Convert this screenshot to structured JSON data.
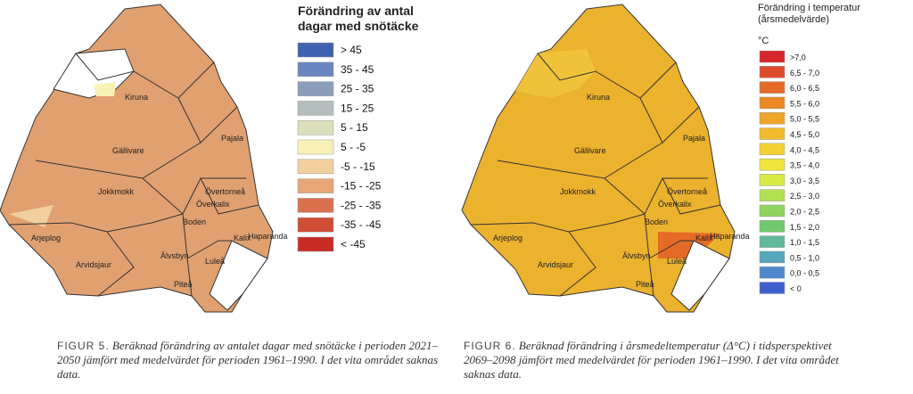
{
  "figures": [
    {
      "legend": {
        "title": "Förändring av antal dagar med snötäcke",
        "items": [
          {
            "label": "> 45",
            "color": "#3f63b0"
          },
          {
            "label": "35 - 45",
            "color": "#6a86c0"
          },
          {
            "label": "25 - 35",
            "color": "#8c9dbb"
          },
          {
            "label": "15 - 25",
            "color": "#b4bdbd"
          },
          {
            "label": "5 - 15",
            "color": "#dcdfbb"
          },
          {
            "label": "5 - -5",
            "color": "#f8f2b6"
          },
          {
            "label": "-5 - -15",
            "color": "#f2d09e"
          },
          {
            "label": "-15 - -25",
            "color": "#e6a677"
          },
          {
            "label": "-25 - -35",
            "color": "#d9714f"
          },
          {
            "label": "-35 - -45",
            "color": "#cf4c35"
          },
          {
            "label": "< -45",
            "color": "#c62b25"
          }
        ]
      },
      "places": [
        "Kiruna",
        "Pajala",
        "Gällivare",
        "Jokkmokk",
        "Övertorneå",
        "Överkalix",
        "Arjeplog",
        "Boden",
        "Kalix",
        "Haparanda",
        "Älvsbyn",
        "Luleå",
        "Arvidsjaur",
        "Piteå"
      ],
      "caption": {
        "label": "FIGUR 5.",
        "text": "Beräknad förändring av antalet dagar med snötäcke i perioden 2021–2050 jämfört med medelvärdet för perioden 1961–1990. I det vita området saknas data."
      }
    },
    {
      "legend": {
        "title": "Förändring i temperatur (årsmedelvärde)",
        "unit": "°C",
        "items": [
          {
            "label": ">7,0",
            "color": "#d7262b"
          },
          {
            "label": "6,5 - 7,0",
            "color": "#de4a2a"
          },
          {
            "label": "6,0 - 6,5",
            "color": "#e56a26"
          },
          {
            "label": "5,5 - 6,0",
            "color": "#ea8a24"
          },
          {
            "label": "5,0 - 5,5",
            "color": "#eea529"
          },
          {
            "label": "4,5 - 5,0",
            "color": "#f0bb2e"
          },
          {
            "label": "4,0 - 4,5",
            "color": "#f3d134"
          },
          {
            "label": "3,5 - 4,0",
            "color": "#f1e43c"
          },
          {
            "label": "3,0 - 3,5",
            "color": "#d6ea45"
          },
          {
            "label": "2,5 - 3,0",
            "color": "#b1e052"
          },
          {
            "label": "2,0 - 2,5",
            "color": "#8fd45c"
          },
          {
            "label": "1,5 - 2,0",
            "color": "#6fc86c"
          },
          {
            "label": "1,0 - 1,5",
            "color": "#5fb99a"
          },
          {
            "label": "0,5 - 1,0",
            "color": "#57a7bd"
          },
          {
            "label": "0,0 - 0,5",
            "color": "#4f87cd"
          },
          {
            "label": "< 0",
            "color": "#3e5fd0"
          }
        ]
      },
      "places": [
        "Kiruna",
        "Pajala",
        "Gällivare",
        "Jokkmokk",
        "Övertorneå",
        "Överkalix",
        "Arjeplog",
        "Boden",
        "Kalix",
        "Haparanda",
        "Älvsbyn",
        "Luleå",
        "Arvidsjaur",
        "Piteå"
      ],
      "caption": {
        "label": "FIGUR 6.",
        "text": "Beräknad förändring i årsmedeltemperatur (Δ°C) i tidsperspektivet 2069–2098 jämfört med medelvärdet för perioden 1961–1990. I det vita området saknas data."
      }
    }
  ]
}
